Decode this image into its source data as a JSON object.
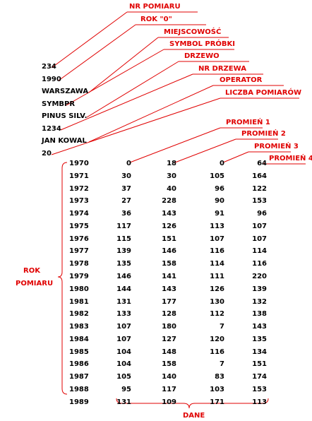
{
  "colors": {
    "label": "#e00000",
    "value": "#000000",
    "line": "#e00000"
  },
  "header_fields": [
    {
      "label": "NR POMIARU",
      "value": "234"
    },
    {
      "label": "ROK \"0\"",
      "value": "1990"
    },
    {
      "label": "MIEJSCOWOŚĆ",
      "value": "WARSZAWA"
    },
    {
      "label": "SYMBOL PRÓBKI",
      "value": "SYMBPR"
    },
    {
      "label": "DRZEWO",
      "value": "PINUS SILV."
    },
    {
      "label": "NR DRZEWA",
      "value": "1234"
    },
    {
      "label": "OPERATOR",
      "value": "JAN KOWAL"
    },
    {
      "label": "LICZBA POMIARÓW",
      "value": "20"
    }
  ],
  "radius_labels": [
    "PROMIEŃ 1",
    "PROMIEŃ 2",
    "PROMIEŃ  3",
    "PROMIEŃ 4"
  ],
  "side_label": {
    "line1": "ROK",
    "line2": "POMIARU"
  },
  "bottom_label": "DANE",
  "table": {
    "rows": [
      {
        "year": "1970",
        "v": [
          "0",
          "18",
          "0",
          "64"
        ]
      },
      {
        "year": "1971",
        "v": [
          "30",
          "30",
          "105",
          "164"
        ]
      },
      {
        "year": "1972",
        "v": [
          "37",
          "40",
          "96",
          "122"
        ]
      },
      {
        "year": "1973",
        "v": [
          "27",
          "228",
          "90",
          "153"
        ]
      },
      {
        "year": "1974",
        "v": [
          "36",
          "143",
          "91",
          "96"
        ]
      },
      {
        "year": "1975",
        "v": [
          "117",
          "126",
          "113",
          "107"
        ]
      },
      {
        "year": "1976",
        "v": [
          "115",
          "151",
          "107",
          "107"
        ]
      },
      {
        "year": "1977",
        "v": [
          "139",
          "146",
          "116",
          "114"
        ]
      },
      {
        "year": "1978",
        "v": [
          "135",
          "158",
          "114",
          "116"
        ]
      },
      {
        "year": "1979",
        "v": [
          "146",
          "141",
          "111",
          "220"
        ]
      },
      {
        "year": "1980",
        "v": [
          "144",
          "143",
          "126",
          "139"
        ]
      },
      {
        "year": "1981",
        "v": [
          "131",
          "177",
          "130",
          "132"
        ]
      },
      {
        "year": "1982",
        "v": [
          "133",
          "128",
          "112",
          "138"
        ]
      },
      {
        "year": "1983",
        "v": [
          "107",
          "180",
          "7",
          "143"
        ]
      },
      {
        "year": "1984",
        "v": [
          "107",
          "127",
          "120",
          "135"
        ]
      },
      {
        "year": "1985",
        "v": [
          "104",
          "148",
          "116",
          "134"
        ]
      },
      {
        "year": "1986",
        "v": [
          "104",
          "158",
          "7",
          "151"
        ]
      },
      {
        "year": "1987",
        "v": [
          "105",
          "140",
          "83",
          "174"
        ]
      },
      {
        "year": "1988",
        "v": [
          "95",
          "117",
          "103",
          "153"
        ]
      },
      {
        "year": "1989",
        "v": [
          "131",
          "109",
          "171",
          "113"
        ]
      }
    ]
  }
}
